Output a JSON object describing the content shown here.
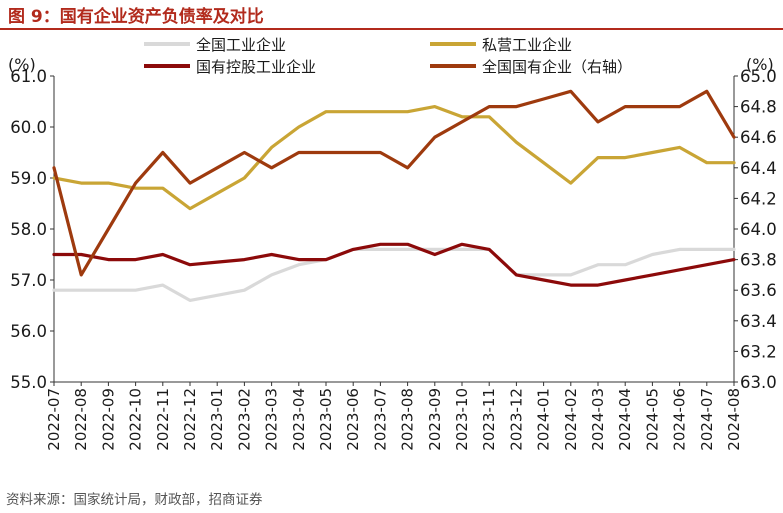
{
  "figure": {
    "title": "图 9：国有企业资产负债率及对比",
    "source": "资料来源：国家统计局，财政部，招商证券"
  },
  "chart_data": {
    "type": "line",
    "x": [
      "2022-07",
      "2022-08",
      "2022-09",
      "2022-10",
      "2022-11",
      "2022-12",
      "2023-01",
      "2023-02",
      "2023-03",
      "2023-04",
      "2023-05",
      "2023-06",
      "2023-07",
      "2023-08",
      "2023-09",
      "2023-10",
      "2023-11",
      "2023-12",
      "2024-01",
      "2024-02",
      "2024-03",
      "2024-04",
      "2024-05",
      "2024-06",
      "2024-07",
      "2024-08"
    ],
    "y_left": {
      "unit": "(%)",
      "range": [
        55.0,
        61.0
      ],
      "ticks": [
        "55.0",
        "56.0",
        "57.0",
        "58.0",
        "59.0",
        "60.0",
        "61.0"
      ]
    },
    "y_right": {
      "unit": "(%)",
      "range": [
        63.0,
        65.0
      ],
      "ticks": [
        "63.0",
        "63.2",
        "63.4",
        "63.6",
        "63.8",
        "64.0",
        "64.2",
        "64.4",
        "64.6",
        "64.8",
        "65.0"
      ]
    },
    "grid": false,
    "legend_position": "top",
    "series": [
      {
        "name": "全国工业企业",
        "axis": "left",
        "color": "#d9d9d9",
        "values": [
          56.8,
          56.8,
          56.8,
          56.8,
          56.9,
          56.6,
          56.7,
          56.8,
          57.1,
          57.3,
          57.4,
          57.6,
          57.6,
          57.6,
          57.6,
          57.6,
          57.6,
          57.1,
          57.1,
          57.1,
          57.3,
          57.3,
          57.5,
          57.6,
          57.6,
          57.6
        ]
      },
      {
        "name": "私营工业企业",
        "axis": "left",
        "color": "#c9a535",
        "values": [
          59.0,
          58.9,
          58.9,
          58.8,
          58.8,
          58.4,
          58.7,
          59.0,
          59.6,
          60.0,
          60.3,
          60.3,
          60.3,
          60.3,
          60.4,
          60.2,
          60.2,
          59.7,
          59.3,
          58.9,
          59.4,
          59.4,
          59.5,
          59.6,
          59.3,
          59.3
        ]
      },
      {
        "name": "国有控股工业企业",
        "axis": "left",
        "color": "#8c0a0a",
        "values": [
          57.5,
          57.5,
          57.4,
          57.4,
          57.5,
          57.3,
          57.35,
          57.4,
          57.5,
          57.4,
          57.4,
          57.6,
          57.7,
          57.7,
          57.5,
          57.7,
          57.6,
          57.1,
          57.0,
          56.9,
          56.9,
          57.0,
          57.1,
          57.2,
          57.3,
          57.4
        ]
      },
      {
        "name": "全国国有企业（右轴）",
        "axis": "right",
        "color": "#9e3a0e",
        "values": [
          64.4,
          63.7,
          64.0,
          64.3,
          64.5,
          64.3,
          64.4,
          64.5,
          64.4,
          64.5,
          64.5,
          64.5,
          64.5,
          64.4,
          64.6,
          64.7,
          64.8,
          64.8,
          64.85,
          64.9,
          64.7,
          64.8,
          64.8,
          64.8,
          64.9,
          64.6
        ]
      }
    ]
  }
}
